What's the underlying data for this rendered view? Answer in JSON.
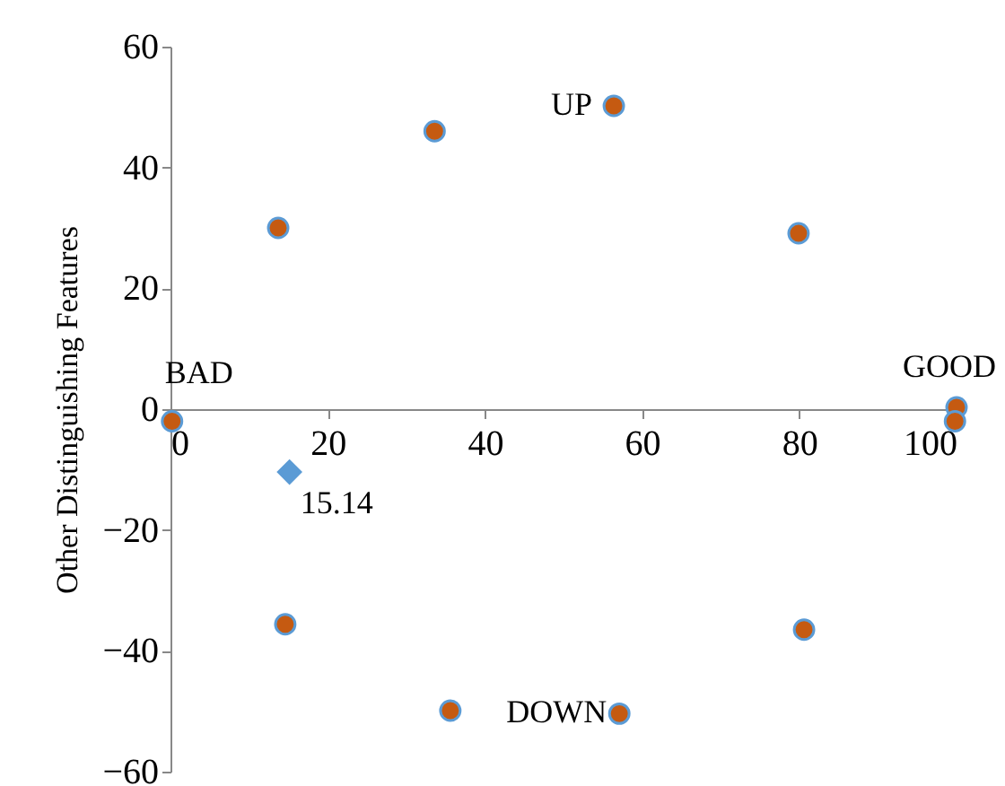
{
  "chart_data": {
    "type": "scatter",
    "ylabel": "Other Distinguishing Features",
    "series": [
      {
        "color": "#c55a11",
        "marker": "circle",
        "x": [
          0.2,
          13.7,
          33.6,
          56.4,
          79.9,
          100,
          99.8,
          14.6,
          35.6,
          57.1,
          80.6
        ],
        "values": [
          -2,
          30,
          46,
          50.2,
          29.1,
          0.3,
          -2,
          -35.6,
          -49.9,
          -50.4,
          -36.5
        ]
      },
      {
        "color": "#5b9bd5",
        "marker": "diamond",
        "x": [
          15.14
        ],
        "values": [
          -10.4
        ]
      }
    ],
    "annotations": [
      {
        "text": "BAD",
        "x": 0.2,
        "y": -2
      },
      {
        "text": "UP",
        "x": 56.4,
        "y": 50.2
      },
      {
        "text": "GOOD",
        "x": 100,
        "y": 0.3
      },
      {
        "text": "DOWN",
        "x": 57.1,
        "y": -50.4
      },
      {
        "text": "15.14",
        "x": 15.14,
        "y": -10.4
      }
    ],
    "xlim": [
      0,
      100
    ],
    "xticks": [
      0,
      20,
      40,
      60,
      80,
      100
    ],
    "ylim": [
      -60,
      60
    ],
    "yticks": [
      -60,
      -40,
      -20,
      0,
      20,
      40,
      60
    ]
  }
}
